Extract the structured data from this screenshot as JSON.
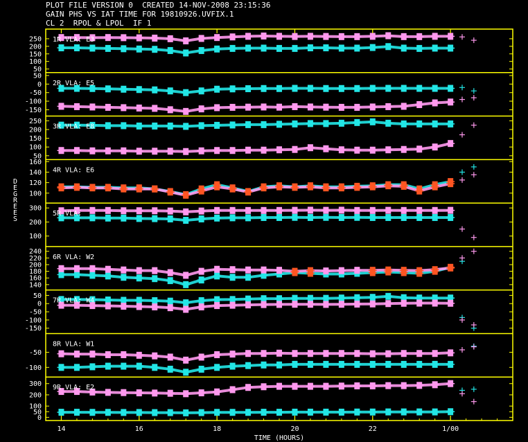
{
  "header": {
    "line1": "PLOT FILE VERSION 0  CREATED 14-NOV-2008 23:15:36",
    "line2": "GAIN PHS VS IAT TIME FOR 19810926.UVFIX.1",
    "line3": "CL 2  RPOL & LPOL  IF 1"
  },
  "colors": {
    "background": "#000000",
    "frame": "#ffff00",
    "rpol": "#ff99ee",
    "lpol": "#22e6e6",
    "overlap": "#ff5522",
    "text": "#ffffff"
  },
  "chart_data": {
    "type": "scatter",
    "title": "GAIN PHS VS IAT TIME FOR 19810926.UVFIX.1",
    "xlabel": "TIME (HOURS)",
    "ylabel": "DEGREES",
    "x_tick_labels": [
      "14",
      "16",
      "18",
      "20",
      "22",
      "1/00"
    ],
    "xlim": [
      13.6,
      25.6
    ],
    "x_sample": [
      14.0,
      14.4,
      14.8,
      15.2,
      15.6,
      16.0,
      16.4,
      16.8,
      17.2,
      17.6,
      18.0,
      18.4,
      18.8,
      19.2,
      19.6,
      20.0,
      20.4,
      20.8,
      21.2,
      21.6,
      22.0,
      22.4,
      22.8,
      23.2,
      23.6,
      24.0
    ],
    "tail_x": [
      24.3,
      24.6
    ],
    "panels": [
      {
        "label": "1R VLA: E3",
        "ylim": [
          40,
          300
        ],
        "y_ticks": [
          50,
          100,
          150,
          200,
          250
        ],
        "series": [
          {
            "pol": "RPOL",
            "values": [
              258,
              258,
              257,
              258,
              257,
              256,
              254,
              250,
              236,
              252,
              258,
              262,
              266,
              268,
              266,
              265,
              266,
              265,
              264,
              264,
              266,
              270,
              264,
              264,
              266,
              266
            ],
            "tail": [
              262,
              240
            ]
          },
          {
            "pol": "LPOL",
            "values": [
              190,
              190,
              188,
              186,
              184,
              182,
              180,
              172,
              156,
              172,
              182,
              186,
              188,
              188,
              186,
              186,
              190,
              190,
              188,
              188,
              192,
              198,
              188,
              186,
              188,
              188
            ],
            "tail": [
              null,
              null
            ]
          }
        ]
      },
      {
        "label": "2R VLA: E5",
        "ylim": [
          -175,
          55
        ],
        "y_ticks": [
          -150,
          -100,
          -50,
          0,
          50
        ],
        "series": [
          {
            "pol": "RPOL",
            "values": [
              -130,
              -132,
              -134,
              -136,
              -138,
              -140,
              -142,
              -150,
              -160,
              -145,
              -138,
              -136,
              -135,
              -134,
              -135,
              -132,
              -134,
              -135,
              -136,
              -136,
              -134,
              -132,
              -130,
              -120,
              -110,
              -105
            ],
            "tail": [
              -90,
              -80
            ]
          },
          {
            "pol": "LPOL",
            "values": [
              -25,
              -25,
              -26,
              -28,
              -30,
              -32,
              -34,
              -40,
              -50,
              -40,
              -30,
              -28,
              -27,
              -26,
              -26,
              -25,
              -25,
              -26,
              -26,
              -26,
              -25,
              -25,
              -25,
              -25,
              -25,
              -25
            ],
            "tail": [
              -20,
              -40
            ]
          }
        ]
      },
      {
        "label": "3R VLA: E8",
        "ylim": [
          40,
          265
        ],
        "y_ticks": [
          50,
          100,
          150,
          200,
          250
        ],
        "series": [
          {
            "pol": "RPOL",
            "values": [
              80,
              80,
              78,
              78,
              78,
              76,
              76,
              76,
              74,
              78,
              80,
              80,
              82,
              82,
              84,
              86,
              96,
              90,
              84,
              82,
              82,
              84,
              86,
              88,
              100,
              120
            ],
            "tail": [
              170,
              225
            ]
          },
          {
            "pol": "LPOL",
            "values": [
              225,
              225,
              224,
              222,
              222,
              220,
              220,
              220,
              218,
              222,
              224,
              226,
              228,
              228,
              230,
              232,
              234,
              234,
              236,
              240,
              244,
              236,
              232,
              232,
              232,
              232
            ],
            "tail": [
              null,
              null
            ]
          }
        ]
      },
      {
        "label": "4R VLA: E6",
        "ylim": [
          85,
          160
        ],
        "y_ticks": [
          100,
          120,
          140,
          160
        ],
        "series": [
          {
            "pol": "RPOL",
            "values": [
              110,
              111,
              110,
              110,
              108,
              108,
              108,
              102,
              96,
              104,
              112,
              108,
              102,
              110,
              112,
              111,
              112,
              110,
              110,
              111,
              112,
              114,
              113,
              104,
              112,
              118
            ],
            "tail": [
              125,
              135
            ]
          },
          {
            "pol": "LPOL",
            "values": [
              112,
              112,
              111,
              111,
              110,
              110,
              108,
              103,
              97,
              108,
              116,
              110,
              103,
              112,
              114,
              112,
              114,
              112,
              112,
              113,
              114,
              116,
              116,
              108,
              116,
              122
            ],
            "tail": [
              140,
              150
            ]
          }
        ]
      },
      {
        "label": "5R VLA:",
        "ylim": [
          40,
          320
        ],
        "y_ticks": [
          100,
          200,
          300
        ],
        "series": [
          {
            "pol": "RPOL",
            "values": [
              280,
              282,
              282,
              282,
              280,
              280,
              280,
              278,
              272,
              278,
              282,
              282,
              282,
              282,
              282,
              283,
              284,
              283,
              284,
              282,
              282,
              283,
              282,
              282,
              282,
              283
            ],
            "tail": [
              150,
              90
            ]
          },
          {
            "pol": "LPOL",
            "values": [
              230,
              230,
              230,
              228,
              228,
              225,
              224,
              222,
              212,
              222,
              228,
              230,
              230,
              232,
              232,
              233,
              232,
              233,
              232,
              233,
              232,
              232,
              232,
              232,
              232,
              232
            ],
            "tail": [
              null,
              null
            ]
          }
        ]
      },
      {
        "label": "6R VLA: W2",
        "ylim": [
          130,
          248
        ],
        "y_ticks": [
          140,
          160,
          180,
          200,
          220,
          240
        ],
        "series": [
          {
            "pol": "RPOL",
            "values": [
              188,
              188,
              188,
              186,
              184,
              182,
              182,
              176,
              168,
              180,
              186,
              185,
              184,
              184,
              183,
              180,
              182,
              181,
              182,
              183,
              183,
              184,
              183,
              182,
              185,
              190
            ],
            "tail": [
              220,
              240
            ]
          },
          {
            "pol": "LPOL",
            "values": [
              170,
              170,
              168,
              166,
              162,
              160,
              158,
              152,
              140,
              154,
              166,
              162,
              162,
              168,
              172,
              176,
              174,
              172,
              172,
              174,
              176,
              178,
              176,
              174,
              180,
              192
            ],
            "tail": [
              210,
              null
            ]
          }
        ]
      },
      {
        "label": "7R VLA: W4",
        "ylim": [
          -170,
          70
        ],
        "y_ticks": [
          -150,
          -100,
          -50,
          0,
          50
        ],
        "series": [
          {
            "pol": "RPOL",
            "values": [
              -10,
              -10,
              -12,
              -14,
              -16,
              -18,
              -20,
              -25,
              -35,
              -20,
              -12,
              -10,
              -8,
              -6,
              -5,
              -4,
              -4,
              -5,
              -4,
              -3,
              -2,
              0,
              2,
              3,
              3,
              2
            ],
            "tail": [
              -100,
              -130
            ]
          },
          {
            "pol": "LPOL",
            "values": [
              25,
              25,
              24,
              22,
              20,
              20,
              18,
              15,
              5,
              18,
              24,
              25,
              28,
              30,
              30,
              32,
              32,
              32,
              34,
              36,
              38,
              44,
              36,
              34,
              34,
              34
            ],
            "tail": [
              -85,
              -150
            ]
          }
        ]
      },
      {
        "label": "8R VLA: W1",
        "ylim": [
          -125,
          5
        ],
        "y_ticks": [
          -100,
          -50
        ],
        "series": [
          {
            "pol": "RPOL",
            "values": [
              -55,
              -56,
              -56,
              -58,
              -58,
              -60,
              -62,
              -66,
              -76,
              -66,
              -58,
              -56,
              -54,
              -54,
              -53,
              -54,
              -54,
              -54,
              -54,
              -54,
              -55,
              -55,
              -54,
              -54,
              -54,
              -52
            ],
            "tail": [
              -42,
              -32
            ]
          },
          {
            "pol": "LPOL",
            "values": [
              -100,
              -100,
              -98,
              -96,
              -96,
              -96,
              -100,
              -106,
              -116,
              -106,
              -100,
              -96,
              -94,
              -92,
              -92,
              -90,
              -90,
              -90,
              -90,
              -90,
              -90,
              -90,
              -90,
              -90,
              -90,
              -90
            ],
            "tail": [
              null,
              -30
            ]
          }
        ]
      },
      {
        "label": "9R VLA: E2",
        "ylim": [
          -10,
          340
        ],
        "y_ticks": [
          0,
          50,
          100,
          200,
          300
        ],
        "series": [
          {
            "pol": "RPOL",
            "values": [
              230,
              230,
              225,
              222,
              220,
              218,
              216,
              214,
              210,
              218,
              226,
              246,
              266,
              272,
              276,
              276,
              276,
              276,
              278,
              280,
              280,
              282,
              282,
              284,
              290,
              300
            ],
            "tail": [
              210,
              140
            ]
          },
          {
            "pol": "LPOL",
            "values": [
              45,
              45,
              44,
              44,
              43,
              43,
              42,
              42,
              40,
              42,
              44,
              44,
              44,
              45,
              45,
              46,
              46,
              46,
              46,
              47,
              47,
              48,
              48,
              48,
              48,
              50
            ],
            "tail": [
              240,
              250
            ]
          }
        ]
      }
    ]
  }
}
